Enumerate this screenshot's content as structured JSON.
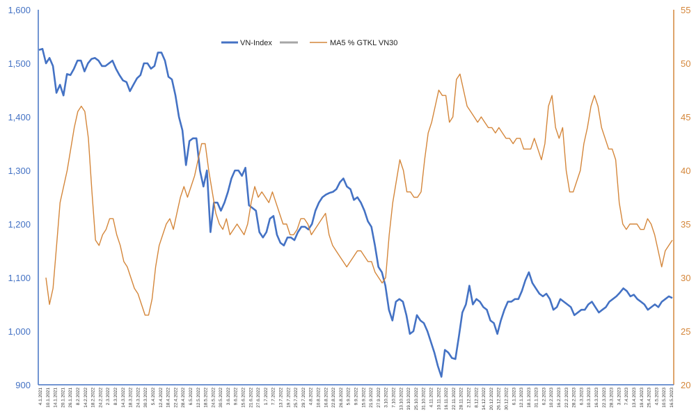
{
  "chart_data": {
    "type": "line",
    "title": "",
    "colors": {
      "vnindex": "#4472c4",
      "ma5": "#d4863a",
      "gap_series": "#a6a6a6",
      "axis": "#4472c4",
      "axis_right": "#d4863a"
    },
    "legend": [
      "VN-Index",
      "",
      "MA5 % GTKL VN30"
    ],
    "legend_position": "top-center",
    "y_left": {
      "min": 900,
      "max": 1600,
      "ticks": [
        "900",
        "1,000",
        "1,100",
        "1,200",
        "1,300",
        "1,400",
        "1,500",
        "1,600"
      ]
    },
    "y_right": {
      "min": 20,
      "max": 55,
      "ticks": [
        "20",
        "25",
        "30",
        "35",
        "40",
        "45",
        "50",
        "55"
      ]
    },
    "x_labels": [
      "4.1.2021",
      "10.1.2021",
      "14.1.2021",
      "20.1.2021",
      "26.1.2021",
      "8.2.2022",
      "14.2.2022",
      "18.2.2022",
      "24.2.2022",
      "2.3.2022",
      "8.3.2022",
      "14.3.2022",
      "18.3.2022",
      "24.3.2022",
      "30.3.2022",
      "5.4.2022",
      "12.4.2022",
      "18.4.2022",
      "22.4.2022",
      "28.4.2022",
      "6.5.2022",
      "12.5.2022",
      "18.5.2022",
      "24.5.2022",
      "30.5.2022",
      "3.6.2022",
      "9.6.2022",
      "15.6.2022",
      "21.6.2022",
      "27.6.2022",
      "1.7.2022",
      "7.7.2022",
      "13.7.2022",
      "19.7.2022",
      "25.7.2022",
      "29.7.2022",
      "4.8.2022",
      "10.8.2022",
      "16.8.2022",
      "22.8.2022",
      "26.8.2022",
      "5.9.2022",
      "9.9.2022",
      "15.9.2022",
      "21.9.2022",
      "27.9.2022",
      "3.10.2022",
      "7.10.2022",
      "13.10.2022",
      "19.10.2022",
      "25.10.2022",
      "31.10.2022",
      "4.11.2022",
      "10.11.2022",
      "16.11.2022",
      "22.11.2022",
      "28.11.2022",
      "2.12.2022",
      "8.12.2022",
      "14.12.2022",
      "20.12.2022",
      "26.12.2022",
      "30.12.2022",
      "6.1.2023",
      "12.1.2023",
      "18.1.2023",
      "31.1.2023",
      "6.2.2023",
      "10.2.2023",
      "16.2.2023",
      "22.2.2023",
      "28.2.2023",
      "6.3.2023",
      "10.3.2023",
      "16.3.2023",
      "22.3.2023",
      "28.3.2023",
      "3.4.2023",
      "7.4.2023",
      "13.4.2023",
      "19.4.2023",
      "25.4.2023",
      "4.5.2023",
      "10.5.2023",
      "16.5.2023"
    ],
    "series": [
      {
        "name": "VN-Index",
        "axis": "left",
        "values": [
          1525,
          1527,
          1500,
          1510,
          1495,
          1445,
          1460,
          1440,
          1480,
          1478,
          1490,
          1505,
          1505,
          1485,
          1500,
          1508,
          1510,
          1505,
          1495,
          1495,
          1500,
          1505,
          1490,
          1478,
          1468,
          1465,
          1448,
          1460,
          1472,
          1478,
          1500,
          1500,
          1490,
          1495,
          1520,
          1520,
          1505,
          1475,
          1470,
          1440,
          1400,
          1375,
          1310,
          1355,
          1360,
          1360,
          1300,
          1270,
          1300,
          1185,
          1240,
          1240,
          1225,
          1240,
          1260,
          1285,
          1300,
          1300,
          1290,
          1305,
          1235,
          1230,
          1225,
          1185,
          1175,
          1185,
          1210,
          1215,
          1180,
          1165,
          1160,
          1175,
          1175,
          1170,
          1185,
          1195,
          1195,
          1190,
          1200,
          1225,
          1240,
          1250,
          1255,
          1258,
          1260,
          1265,
          1278,
          1285,
          1270,
          1265,
          1245,
          1250,
          1240,
          1225,
          1205,
          1195,
          1160,
          1120,
          1110,
          1085,
          1040,
          1020,
          1055,
          1060,
          1055,
          1030,
          995,
          1000,
          1030,
          1020,
          1015,
          1000,
          980,
          960,
          935,
          915,
          965,
          960,
          950,
          948,
          990,
          1035,
          1050,
          1085,
          1050,
          1060,
          1055,
          1045,
          1040,
          1020,
          1015,
          995,
          1020,
          1040,
          1055,
          1055,
          1060,
          1060,
          1075,
          1095,
          1110,
          1090,
          1080,
          1070,
          1065,
          1070,
          1060,
          1040,
          1045,
          1060,
          1055,
          1050,
          1045,
          1030,
          1035,
          1040,
          1040,
          1050,
          1055,
          1045,
          1035,
          1040,
          1045,
          1055,
          1060,
          1065,
          1072,
          1080,
          1075,
          1065,
          1068,
          1060,
          1055,
          1050,
          1040,
          1045,
          1050,
          1045,
          1055,
          1060,
          1065,
          1062
        ]
      },
      {
        "name": "MA5 % GTKL VN30",
        "axis": "right",
        "values": [
          30,
          27.5,
          29,
          33,
          37,
          38.5,
          40,
          42,
          44,
          45.5,
          46,
          45.5,
          43,
          38,
          33.5,
          33,
          34,
          34.5,
          35.5,
          35.5,
          34,
          33,
          31.5,
          31,
          30,
          29,
          28.5,
          27.5,
          26.5,
          26.5,
          28,
          31,
          33,
          34,
          35,
          35.5,
          34.5,
          36,
          37.5,
          38.5,
          37.5,
          38.5,
          39.5,
          41,
          42.5,
          42.5,
          40,
          38,
          36,
          35,
          34.5,
          35.5,
          34,
          34.5,
          35,
          34.5,
          34,
          35,
          37,
          38.5,
          37.5,
          38,
          37.5,
          37,
          38,
          37,
          36,
          35,
          35,
          34,
          34,
          34.5,
          35.5,
          35.5,
          35,
          34,
          34.5,
          35,
          35.5,
          36,
          34,
          33,
          32.5,
          32,
          31.5,
          31,
          31.5,
          32,
          32.5,
          32.5,
          32,
          31.5,
          31.5,
          30.5,
          30,
          29.5,
          30,
          34,
          37,
          39,
          41,
          40,
          38,
          38,
          37.5,
          37.5,
          38,
          41,
          43.5,
          44.5,
          46,
          47.5,
          47,
          47,
          44.5,
          45,
          48.5,
          49,
          47.5,
          46,
          45.5,
          45,
          44.5,
          45,
          44.5,
          44,
          44,
          43.5,
          44,
          43.5,
          43,
          43,
          42.5,
          43,
          43,
          42,
          42,
          42,
          43,
          42,
          41,
          42.5,
          46,
          47,
          44,
          43,
          44,
          40,
          38,
          38,
          39,
          40,
          42.5,
          44,
          46,
          47,
          46,
          44,
          43,
          42,
          42,
          41,
          37,
          35,
          34.5,
          35,
          35,
          35,
          34.5,
          34.5,
          35.5,
          35,
          34,
          32.5,
          31,
          32.5,
          33,
          33.5
        ]
      }
    ]
  }
}
